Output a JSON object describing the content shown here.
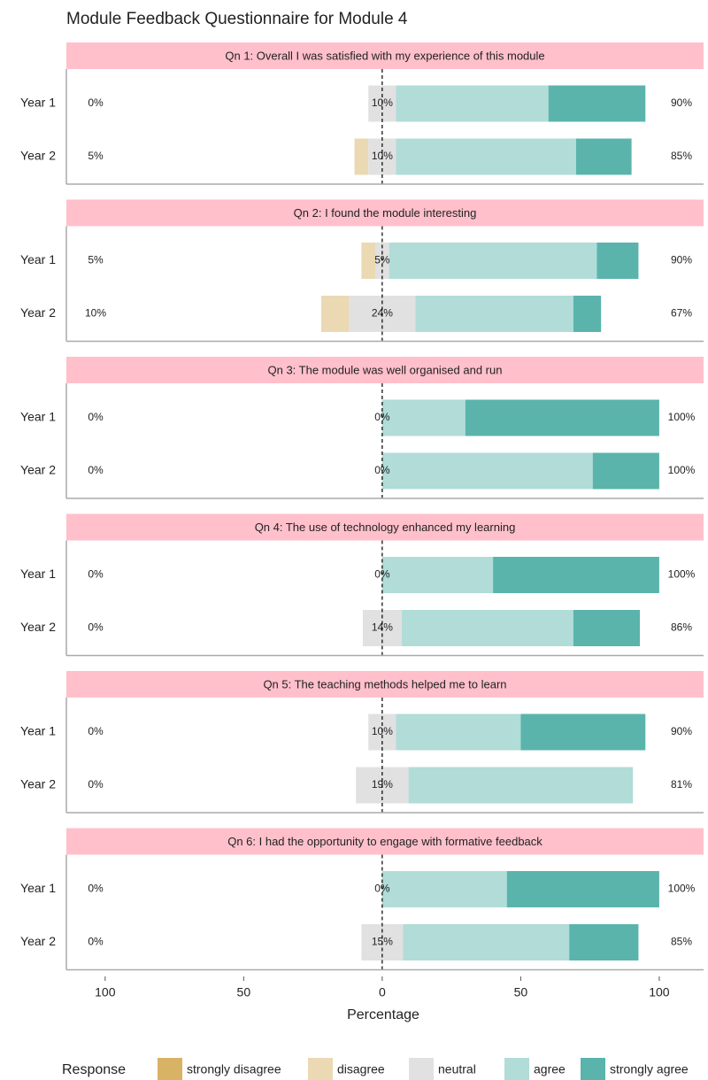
{
  "chart_data": {
    "type": "likert",
    "title": "Module Feedback Questionnaire for Module 4",
    "xlabel": "Percentage",
    "legend_title": "Response",
    "series": [
      {
        "name": "strongly disagree",
        "color": "#d8b365"
      },
      {
        "name": "disagree",
        "color": "#ead9b2"
      },
      {
        "name": "neutral",
        "color": "#e1e1e1"
      },
      {
        "name": "agree",
        "color": "#b1dcd8"
      },
      {
        "name": "strongly agree",
        "color": "#5ab4ac"
      }
    ],
    "xlim": [
      -114,
      116
    ],
    "xticks": [
      {
        "value": -100,
        "label": "100"
      },
      {
        "value": -50,
        "label": "50"
      },
      0,
      50,
      100
    ],
    "panels": [
      {
        "title": "Qn 1: Overall I was satisfied with my experience of this module",
        "rows": [
          "Year 1",
          "Year 2"
        ],
        "values": [
          [
            0,
            0,
            10,
            55,
            35
          ],
          [
            0,
            5,
            10,
            65,
            20
          ]
        ],
        "low_labels": [
          "0%",
          "5%"
        ],
        "neutral_labels": [
          "10%",
          "10%"
        ],
        "high_labels": [
          "90%",
          "85%"
        ]
      },
      {
        "title": "Qn 2: I found the module interesting",
        "rows": [
          "Year 1",
          "Year 2"
        ],
        "values": [
          [
            0,
            5,
            5,
            75,
            15
          ],
          [
            0,
            10,
            24,
            57,
            10
          ]
        ],
        "low_labels": [
          "5%",
          "10%"
        ],
        "neutral_labels": [
          "5%",
          "24%"
        ],
        "high_labels": [
          "90%",
          "67%"
        ]
      },
      {
        "title": "Qn 3: The module was well organised and run",
        "rows": [
          "Year 1",
          "Year 2"
        ],
        "values": [
          [
            0,
            0,
            0,
            30,
            70
          ],
          [
            0,
            0,
            0,
            76,
            24
          ]
        ],
        "low_labels": [
          "0%",
          "0%"
        ],
        "neutral_labels": [
          "0%",
          "0%"
        ],
        "high_labels": [
          "100%",
          "100%"
        ]
      },
      {
        "title": "Qn 4: The use of technology enhanced my learning",
        "rows": [
          "Year 1",
          "Year 2"
        ],
        "values": [
          [
            0,
            0,
            0,
            40,
            60
          ],
          [
            0,
            0,
            14,
            62,
            24
          ]
        ],
        "low_labels": [
          "0%",
          "0%"
        ],
        "neutral_labels": [
          "0%",
          "14%"
        ],
        "high_labels": [
          "100%",
          "86%"
        ]
      },
      {
        "title": "Qn 5: The teaching methods helped me to learn",
        "rows": [
          "Year 1",
          "Year 2"
        ],
        "values": [
          [
            0,
            0,
            10,
            45,
            45
          ],
          [
            0,
            0,
            19,
            81,
            0
          ]
        ],
        "low_labels": [
          "0%",
          "0%"
        ],
        "neutral_labels": [
          "10%",
          "19%"
        ],
        "high_labels": [
          "90%",
          "81%"
        ]
      },
      {
        "title": "Qn 6: I had the opportunity to engage with formative feedback",
        "rows": [
          "Year 1",
          "Year 2"
        ],
        "values": [
          [
            0,
            0,
            0,
            45,
            55
          ],
          [
            0,
            0,
            15,
            60,
            25
          ]
        ],
        "low_labels": [
          "0%",
          "0%"
        ],
        "neutral_labels": [
          "0%",
          "15%"
        ],
        "high_labels": [
          "100%",
          "85%"
        ]
      }
    ]
  }
}
